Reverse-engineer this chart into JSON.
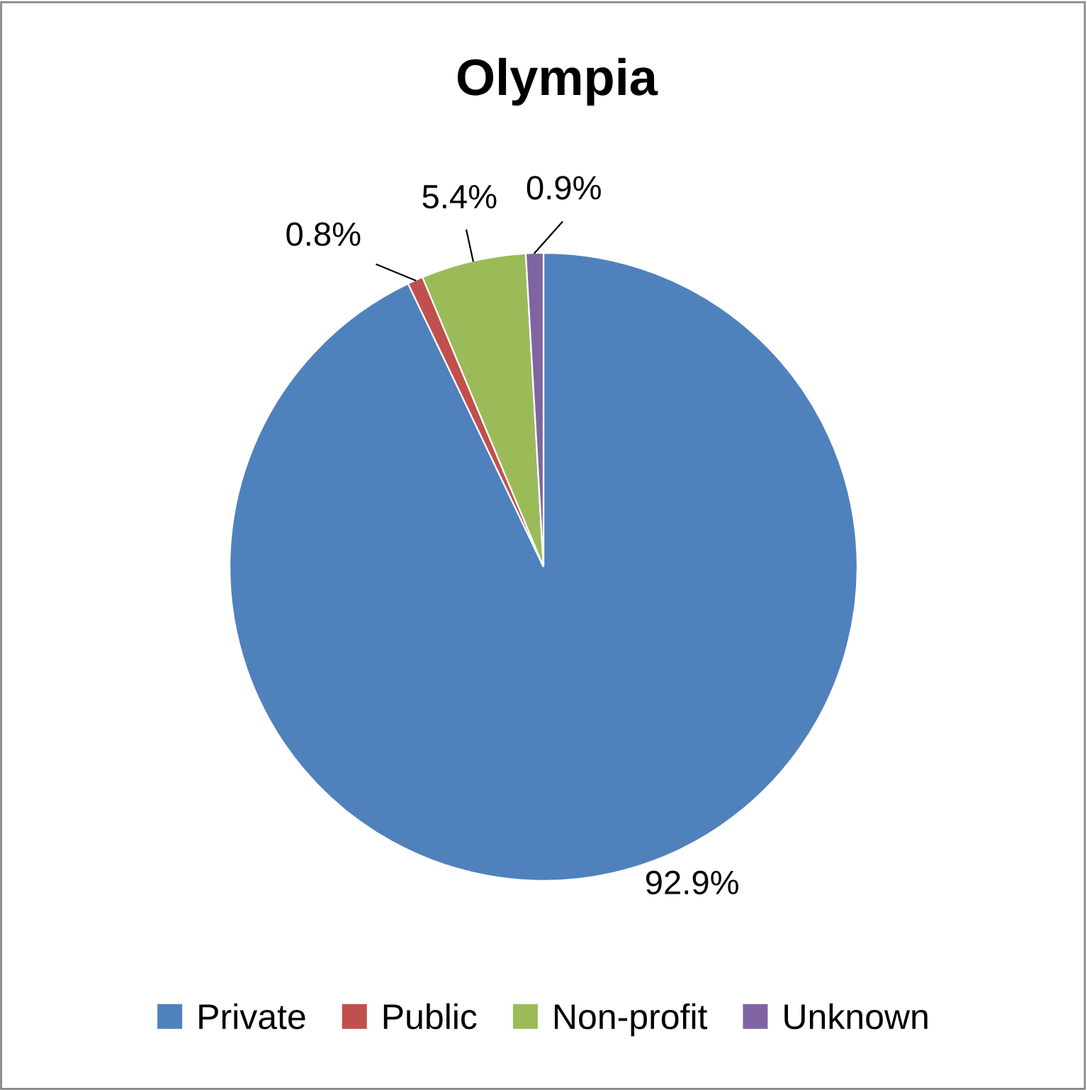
{
  "chart_data": {
    "type": "pie",
    "title": "Olympia",
    "categories": [
      "Private",
      "Public",
      "Non-profit",
      "Unknown"
    ],
    "values": [
      92.9,
      0.8,
      5.4,
      0.9
    ],
    "colors": [
      "#4f81bd",
      "#c0504d",
      "#9bbb59",
      "#8064a2"
    ],
    "value_labels": [
      "92.9%",
      "0.8%",
      "5.4%",
      "0.9%"
    ],
    "legend": "bottom"
  }
}
